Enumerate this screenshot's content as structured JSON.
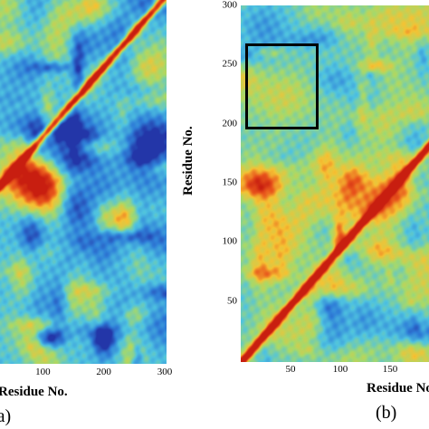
{
  "chart_data": [
    {
      "type": "heatmap",
      "panel_label": "(a)",
      "title": "",
      "xlabel": "Residue No.",
      "ylabel": "",
      "xlim": [
        0,
        300
      ],
      "ylim": [
        0,
        300
      ],
      "x_ticks": [
        "100",
        "200",
        "300"
      ],
      "y_ticks": [],
      "diagonal": "high values along main diagonal",
      "colormap": [
        "#2336a8",
        "#2f7fd8",
        "#4fc3e0",
        "#a7d96a",
        "#f5c233",
        "#e8541c",
        "#c81e10"
      ],
      "grid": false
    },
    {
      "type": "heatmap",
      "panel_label": "(b)",
      "title": "",
      "xlabel": "Residue No.",
      "ylabel": "Residue No.",
      "xlim": [
        0,
        200
      ],
      "ylim": [
        0,
        300
      ],
      "x_ticks": [
        "50",
        "100",
        "150"
      ],
      "y_ticks": [
        "300",
        "250",
        "200",
        "150",
        "100",
        "50"
      ],
      "diagonal": "high values along main diagonal",
      "highlight_box": {
        "x_range": [
          10,
          70
        ],
        "y_range": [
          198,
          268
        ]
      },
      "colormap": [
        "#2336a8",
        "#2f7fd8",
        "#4fc3e0",
        "#a7d96a",
        "#f5c233",
        "#e8541c",
        "#c81e10"
      ],
      "grid": false
    }
  ],
  "panels": {
    "a": {
      "label": "(a)",
      "xlabel": "Residue No."
    },
    "b": {
      "label": "(b)",
      "xlabel": "Residue No.",
      "ylabel": "Residue No."
    }
  }
}
